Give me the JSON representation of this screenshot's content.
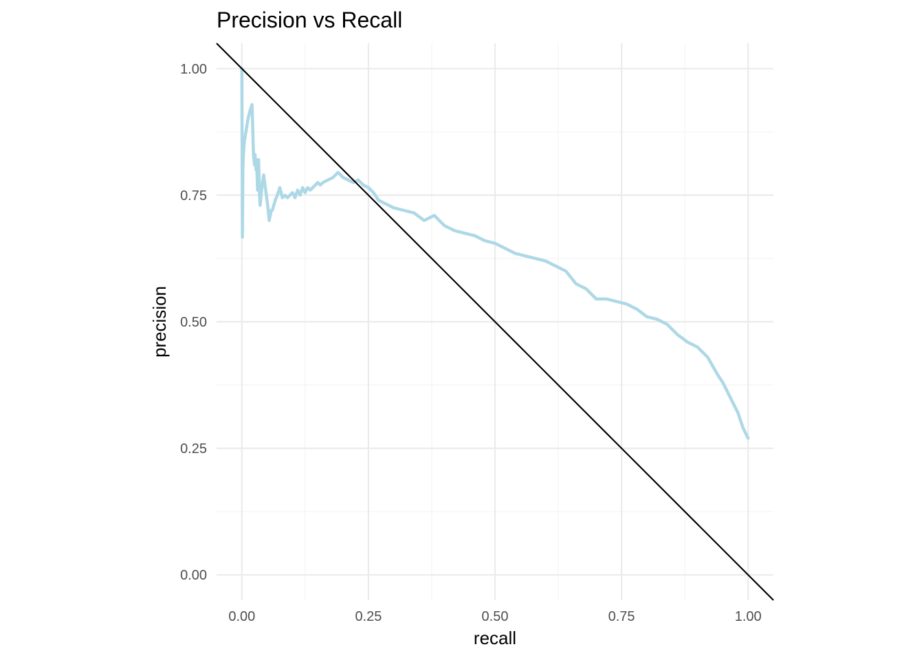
{
  "chart_data": {
    "type": "line",
    "title": "Precision vs Recall",
    "xlabel": "recall",
    "ylabel": "precision",
    "xlim": [
      -0.05,
      1.05
    ],
    "ylim": [
      -0.05,
      1.05
    ],
    "x_ticks": [
      "0.00",
      "0.25",
      "0.50",
      "0.75",
      "1.00"
    ],
    "y_ticks": [
      "0.00",
      "0.25",
      "0.50",
      "0.75",
      "1.00"
    ],
    "grid": true,
    "legend": "none",
    "series": [
      {
        "color": "#add8e6",
        "x": [
          0.0,
          0.001,
          0.002,
          0.003,
          0.005,
          0.008,
          0.012,
          0.016,
          0.02,
          0.023,
          0.025,
          0.026,
          0.028,
          0.029,
          0.031,
          0.033,
          0.035,
          0.036,
          0.038,
          0.04,
          0.043,
          0.047,
          0.051,
          0.054,
          0.056,
          0.058,
          0.06,
          0.063,
          0.066,
          0.07,
          0.075,
          0.08,
          0.085,
          0.09,
          0.095,
          0.1,
          0.105,
          0.11,
          0.115,
          0.12,
          0.125,
          0.13,
          0.135,
          0.14,
          0.145,
          0.15,
          0.155,
          0.16,
          0.17,
          0.18,
          0.19,
          0.2,
          0.21,
          0.22,
          0.23,
          0.24,
          0.25,
          0.26,
          0.27,
          0.28,
          0.29,
          0.3,
          0.32,
          0.34,
          0.36,
          0.38,
          0.4,
          0.42,
          0.44,
          0.46,
          0.48,
          0.5,
          0.52,
          0.54,
          0.56,
          0.58,
          0.6,
          0.62,
          0.64,
          0.66,
          0.68,
          0.7,
          0.72,
          0.74,
          0.76,
          0.78,
          0.8,
          0.82,
          0.84,
          0.86,
          0.88,
          0.9,
          0.92,
          0.94,
          0.95,
          0.96,
          0.97,
          0.98,
          0.99,
          1.0
        ],
        "y": [
          1.0,
          0.667,
          0.8,
          0.83,
          0.857,
          0.875,
          0.9,
          0.917,
          0.929,
          0.83,
          0.81,
          0.83,
          0.8,
          0.82,
          0.76,
          0.82,
          0.75,
          0.73,
          0.75,
          0.77,
          0.79,
          0.76,
          0.73,
          0.7,
          0.71,
          0.72,
          0.72,
          0.73,
          0.74,
          0.75,
          0.765,
          0.745,
          0.75,
          0.745,
          0.75,
          0.755,
          0.745,
          0.76,
          0.75,
          0.765,
          0.755,
          0.765,
          0.76,
          0.765,
          0.77,
          0.775,
          0.77,
          0.775,
          0.78,
          0.785,
          0.795,
          0.785,
          0.78,
          0.775,
          0.78,
          0.77,
          0.765,
          0.755,
          0.74,
          0.735,
          0.73,
          0.725,
          0.72,
          0.715,
          0.7,
          0.71,
          0.69,
          0.68,
          0.675,
          0.67,
          0.66,
          0.655,
          0.645,
          0.635,
          0.63,
          0.625,
          0.62,
          0.61,
          0.6,
          0.575,
          0.565,
          0.545,
          0.545,
          0.54,
          0.535,
          0.525,
          0.51,
          0.505,
          0.495,
          0.475,
          0.46,
          0.45,
          0.43,
          0.395,
          0.38,
          0.36,
          0.34,
          0.32,
          0.29,
          0.27
        ]
      },
      {
        "color": "#000000",
        "x": [
          -0.05,
          1.05
        ],
        "y": [
          1.05,
          -0.05
        ]
      }
    ]
  }
}
